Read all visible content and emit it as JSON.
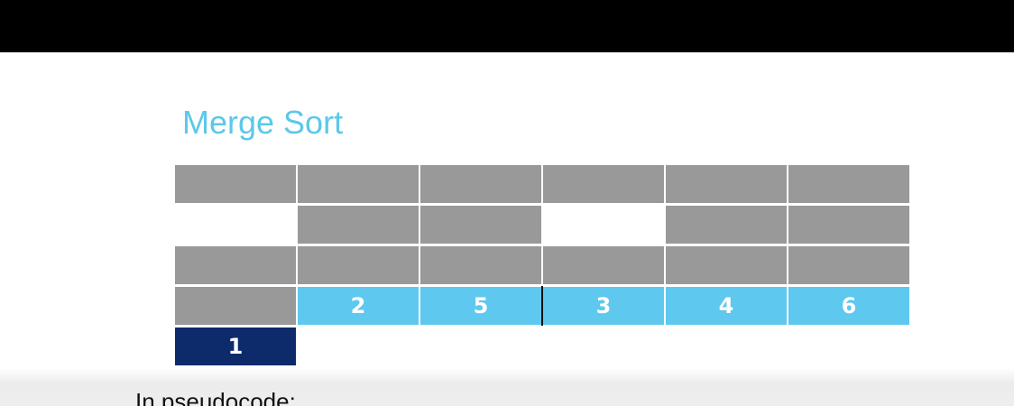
{
  "title": "Merge Sort",
  "pseudocode_label": "In pseudocode:",
  "colors": {
    "top_bar": "#000000",
    "title": "#5bc8ea",
    "gray_cell": "#999999",
    "light_blue_cell": "#5ec8ef",
    "dark_blue_cell": "#0d2a6b"
  },
  "grid": {
    "rows": [
      [
        "gray",
        "gray",
        "gray",
        "gray",
        "gray",
        "gray"
      ],
      [
        "blank",
        "gray",
        "gray",
        "blank",
        "gray",
        "gray"
      ],
      [
        "gray",
        "gray",
        "gray",
        "gray",
        "gray",
        "gray"
      ],
      [
        "gray",
        "light",
        "light",
        "light",
        "light",
        "light"
      ],
      [
        "dark",
        "blank",
        "blank",
        "blank",
        "blank",
        "blank"
      ]
    ],
    "labels": [
      [
        "",
        "",
        "",
        "",
        "",
        ""
      ],
      [
        "",
        "",
        "",
        "",
        "",
        ""
      ],
      [
        "",
        "",
        "",
        "",
        "",
        ""
      ],
      [
        "",
        "2",
        "5",
        "3",
        "4",
        "6"
      ],
      [
        "1",
        "",
        "",
        "",
        "",
        ""
      ]
    ],
    "split_marker": {
      "row": 3,
      "after_column": 2
    }
  }
}
